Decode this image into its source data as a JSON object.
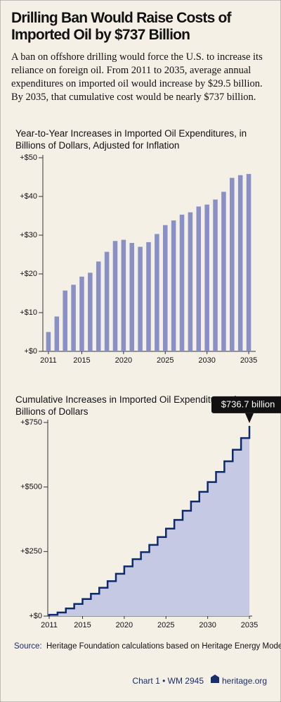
{
  "header": {
    "title": "Drilling Ban Would Raise Costs of Imported Oil by $737 Billion",
    "intro": "A ban on offshore drilling would force the U.S. to increase its reliance on foreign oil. From 2011 to 2035, average annual expenditures on imported oil would increase by $29.5 billion. By 2035, that cumulative cost would be nearly $737 billion."
  },
  "chart_data": [
    {
      "type": "bar",
      "title": "Year-to-Year Increases in Imported Oil Expenditures, in Billions of Dollars, Adjusted for Inflation",
      "x": [
        2011,
        2012,
        2013,
        2014,
        2015,
        2016,
        2017,
        2018,
        2019,
        2020,
        2021,
        2022,
        2023,
        2024,
        2025,
        2026,
        2027,
        2028,
        2029,
        2030,
        2031,
        2032,
        2033,
        2034,
        2035
      ],
      "values": [
        5,
        9,
        15.7,
        17.2,
        19.3,
        20.3,
        23.2,
        25.7,
        28.5,
        28.8,
        28.0,
        27.0,
        28.2,
        30.3,
        32.6,
        33.8,
        35.3,
        35.9,
        37.4,
        37.9,
        39.2,
        41.2,
        44.8,
        45.5,
        45.8
      ],
      "color": "#8890c6",
      "xlim": [
        2010.5,
        2035.5
      ],
      "xticks": [
        2011,
        2015,
        2020,
        2025,
        2030,
        2035
      ],
      "ylim": [
        0,
        50
      ],
      "yticks": [
        {
          "value": 0,
          "label": "+$0"
        },
        {
          "value": 10,
          "label": "+$10"
        },
        {
          "value": 20,
          "label": "+$20"
        },
        {
          "value": 30,
          "label": "+$30"
        },
        {
          "value": 40,
          "label": "+$40"
        },
        {
          "value": 50,
          "label": "+$50"
        }
      ]
    },
    {
      "type": "step",
      "title": "Cumulative Increases in Imported Oil Expenditures, in Billions of Dollars",
      "x": [
        2011,
        2012,
        2013,
        2014,
        2015,
        2016,
        2017,
        2018,
        2019,
        2020,
        2021,
        2022,
        2023,
        2024,
        2025,
        2026,
        2027,
        2028,
        2029,
        2030,
        2031,
        2032,
        2033,
        2034,
        2035
      ],
      "values": [
        5,
        14,
        29.7,
        46.9,
        66.2,
        86.5,
        109.7,
        135.4,
        163.9,
        192.7,
        220.7,
        247.7,
        275.9,
        306.2,
        338.8,
        372.6,
        407.9,
        443.8,
        481.2,
        519.1,
        558.3,
        599.5,
        644.3,
        689.8,
        736.7
      ],
      "color": "#0d2a6e",
      "fill": "#c5c9e4",
      "annotation": "$736.7 billion",
      "xlim": [
        2011,
        2035
      ],
      "xticks": [
        2011,
        2015,
        2020,
        2025,
        2030,
        2035
      ],
      "ylim": [
        0,
        750
      ],
      "yticks": [
        {
          "value": 0,
          "label": "+$0"
        },
        {
          "value": 250,
          "label": "+$250"
        },
        {
          "value": 500,
          "label": "+$500"
        },
        {
          "value": 750,
          "label": "+$750"
        }
      ]
    }
  ],
  "footer": {
    "source_label": "Source:",
    "source": "Heritage Foundation calculations based on Heritage Energy Model.",
    "chart_id": "Chart 1 • WM 2945",
    "site": "heritage.org"
  }
}
